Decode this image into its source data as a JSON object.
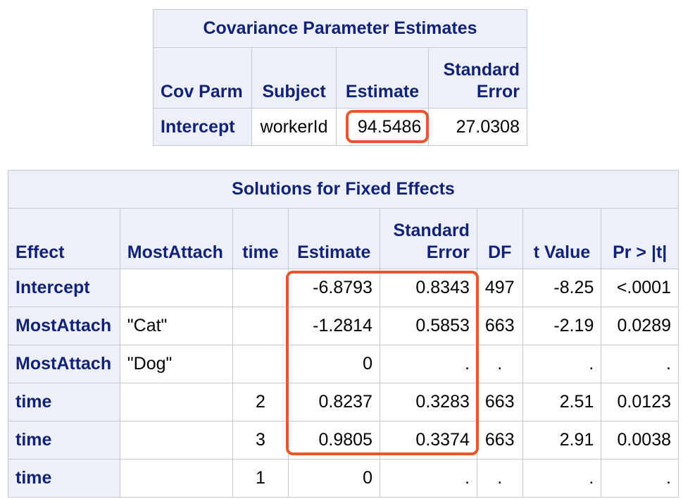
{
  "cov_table": {
    "title": "Covariance Parameter Estimates",
    "headers": [
      "Cov Parm",
      "Subject",
      "Estimate",
      "Standard Error"
    ],
    "rows": [
      [
        "Intercept",
        "workerId",
        "94.5486",
        "27.0308"
      ]
    ]
  },
  "fixed_table": {
    "title": "Solutions for Fixed Effects",
    "headers": [
      "Effect",
      "MostAttach",
      "time",
      "Estimate",
      "Standard Error",
      "DF",
      "t Value",
      "Pr > |t|"
    ],
    "rows": [
      [
        "Intercept",
        "",
        "",
        "-6.8793",
        "0.8343",
        "497",
        "-8.25",
        "<.0001"
      ],
      [
        "MostAttach",
        "\"Cat\"",
        "",
        "-1.2814",
        "0.5853",
        "663",
        "-2.19",
        "0.0289"
      ],
      [
        "MostAttach",
        "\"Dog\"",
        "",
        "0",
        ".",
        ".",
        ".",
        "."
      ],
      [
        "time",
        "",
        "2",
        "0.8237",
        "0.3283",
        "663",
        "2.51",
        "0.0123"
      ],
      [
        "time",
        "",
        "3",
        "0.9805",
        "0.3374",
        "663",
        "2.91",
        "0.0038"
      ],
      [
        "time",
        "",
        "1",
        "0",
        ".",
        ".",
        ".",
        "."
      ]
    ]
  },
  "highlight_color": "#e8562a"
}
